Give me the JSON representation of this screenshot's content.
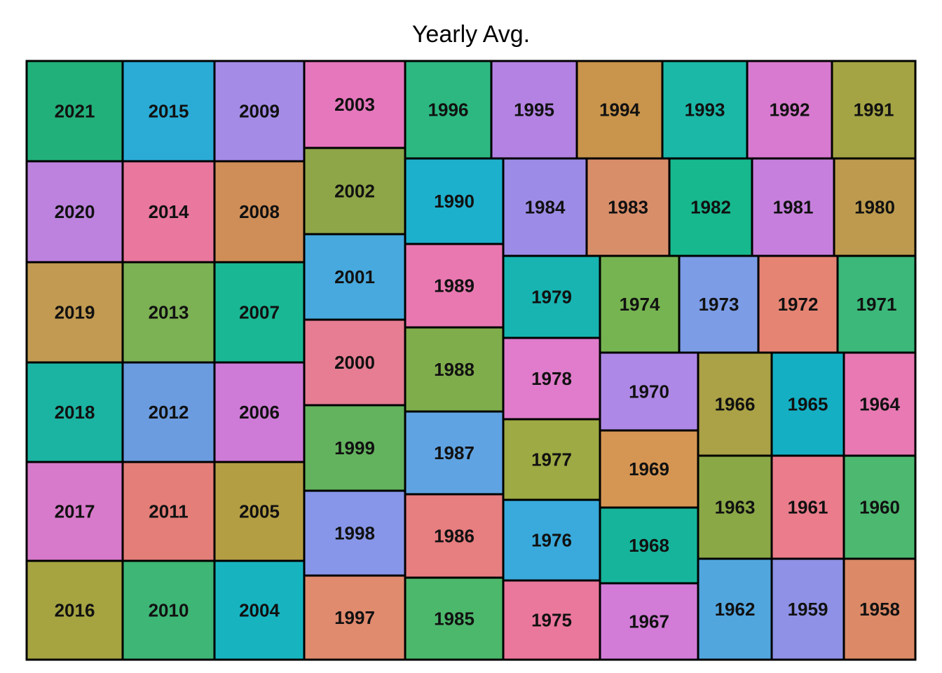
{
  "chart_data": {
    "type": "treemap",
    "title": "Yearly Avg.",
    "tiles": [
      {
        "label": "2021",
        "color": "#22B07A"
      },
      {
        "label": "2015",
        "color": "#2AACD6"
      },
      {
        "label": "2009",
        "color": "#A48BE6"
      },
      {
        "label": "2003",
        "color": "#E677BD"
      },
      {
        "label": "1996",
        "color": "#2DB881"
      },
      {
        "label": "1995",
        "color": "#B482E2"
      },
      {
        "label": "1994",
        "color": "#C9944B"
      },
      {
        "label": "1993",
        "color": "#1BB8A8"
      },
      {
        "label": "1992",
        "color": "#D87ACF"
      },
      {
        "label": "1991",
        "color": "#A4A444"
      },
      {
        "label": "2020",
        "color": "#BC82DE"
      },
      {
        "label": "2014",
        "color": "#E9779E"
      },
      {
        "label": "2008",
        "color": "#CF8E58"
      },
      {
        "label": "2002",
        "color": "#8EA647"
      },
      {
        "label": "1990",
        "color": "#1DB0CD"
      },
      {
        "label": "1984",
        "color": "#9D8CE7"
      },
      {
        "label": "1983",
        "color": "#D98E6A"
      },
      {
        "label": "1982",
        "color": "#17B88E"
      },
      {
        "label": "1981",
        "color": "#C67FDC"
      },
      {
        "label": "1980",
        "color": "#BD9A4D"
      },
      {
        "label": "2019",
        "color": "#C29A51"
      },
      {
        "label": "2013",
        "color": "#7CB154"
      },
      {
        "label": "2007",
        "color": "#1AB794"
      },
      {
        "label": "2001",
        "color": "#47A9DD"
      },
      {
        "label": "1989",
        "color": "#E978B1"
      },
      {
        "label": "1979",
        "color": "#17B4B1"
      },
      {
        "label": "1974",
        "color": "#76B451"
      },
      {
        "label": "1973",
        "color": "#7C9CE6"
      },
      {
        "label": "1972",
        "color": "#E68474"
      },
      {
        "label": "1971",
        "color": "#3BB87A"
      },
      {
        "label": "2018",
        "color": "#1BB4A2"
      },
      {
        "label": "2012",
        "color": "#6B9CE0"
      },
      {
        "label": "2006",
        "color": "#CE7BD8"
      },
      {
        "label": "2000",
        "color": "#E67D93"
      },
      {
        "label": "1988",
        "color": "#80AD4C"
      },
      {
        "label": "1978",
        "color": "#E07CCB"
      },
      {
        "label": "1970",
        "color": "#AE88E6"
      },
      {
        "label": "1966",
        "color": "#ABA146"
      },
      {
        "label": "1965",
        "color": "#15AFC4"
      },
      {
        "label": "1964",
        "color": "#E879B3"
      },
      {
        "label": "2017",
        "color": "#D87ACB"
      },
      {
        "label": "2011",
        "color": "#E47E79"
      },
      {
        "label": "2005",
        "color": "#B49E44"
      },
      {
        "label": "1999",
        "color": "#63B35E"
      },
      {
        "label": "1987",
        "color": "#60A3E2"
      },
      {
        "label": "1977",
        "color": "#9EAA43"
      },
      {
        "label": "1969",
        "color": "#D69653"
      },
      {
        "label": "1963",
        "color": "#8AA846"
      },
      {
        "label": "1961",
        "color": "#EA7C8C"
      },
      {
        "label": "1960",
        "color": "#4DB870"
      },
      {
        "label": "1998",
        "color": "#8796E8"
      },
      {
        "label": "1986",
        "color": "#E77E80"
      },
      {
        "label": "1976",
        "color": "#39AADB"
      },
      {
        "label": "1968",
        "color": "#16B59B"
      },
      {
        "label": "2016",
        "color": "#A5A441"
      },
      {
        "label": "2010",
        "color": "#3EB676"
      },
      {
        "label": "2004",
        "color": "#17B4C0"
      },
      {
        "label": "1997",
        "color": "#E08A6E"
      },
      {
        "label": "1985",
        "color": "#4CB86B"
      },
      {
        "label": "1975",
        "color": "#EA779C"
      },
      {
        "label": "1967",
        "color": "#D27CD8"
      },
      {
        "label": "1962",
        "color": "#51A6DE"
      },
      {
        "label": "1959",
        "color": "#8E91E5"
      },
      {
        "label": "1958",
        "color": "#DB8966"
      }
    ]
  }
}
